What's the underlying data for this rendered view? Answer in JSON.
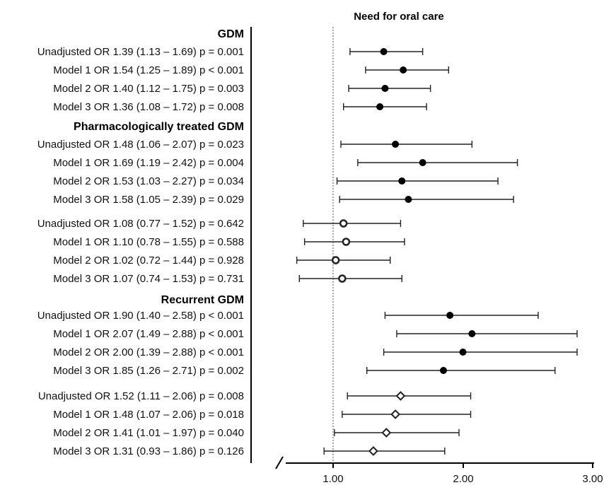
{
  "chart_data": {
    "type": "forest",
    "title": "Need for oral care",
    "x_ticks": [
      "1.00",
      "2.00",
      "3.00"
    ],
    "xlim": [
      0.5,
      3.0
    ],
    "reference_line": 1.0,
    "x_axis_break": true,
    "groups": [
      {
        "heading": "GDM",
        "rows": [
          {
            "label": "Unadjusted OR 1.39 (1.13 – 1.69) p = 0.001",
            "or": 1.39,
            "lo": 1.13,
            "hi": 1.69,
            "marker": "filled-circle"
          },
          {
            "label": "Model 1 OR 1.54 (1.25 – 1.89) p < 0.001",
            "or": 1.54,
            "lo": 1.25,
            "hi": 1.89,
            "marker": "filled-circle"
          },
          {
            "label": "Model 2 OR 1.40 (1.12 – 1.75) p = 0.003",
            "or": 1.4,
            "lo": 1.12,
            "hi": 1.75,
            "marker": "filled-circle"
          },
          {
            "label": "Model 3 OR 1.36 (1.08 – 1.72) p = 0.008",
            "or": 1.36,
            "lo": 1.08,
            "hi": 1.72,
            "marker": "filled-circle"
          }
        ]
      },
      {
        "heading": "Pharmacologically treated GDM",
        "rows": [
          {
            "label": "Unadjusted OR 1.48 (1.06 – 2.07) p = 0.023",
            "or": 1.48,
            "lo": 1.06,
            "hi": 2.07,
            "marker": "filled-circle"
          },
          {
            "label": "Model 1 OR 1.69 (1.19 – 2.42) p = 0.004",
            "or": 1.69,
            "lo": 1.19,
            "hi": 2.42,
            "marker": "filled-circle"
          },
          {
            "label": "Model 2 OR 1.53 (1.03 – 2.27) p = 0.034",
            "or": 1.53,
            "lo": 1.03,
            "hi": 2.27,
            "marker": "filled-circle"
          },
          {
            "label": "Model 3 OR 1.58 (1.05 – 2.39) p = 0.029",
            "or": 1.58,
            "lo": 1.05,
            "hi": 2.39,
            "marker": "filled-circle"
          }
        ]
      },
      {
        "heading": "",
        "rows": [
          {
            "label": "Unadjusted OR 1.08 (0.77 – 1.52) p = 0.642",
            "or": 1.08,
            "lo": 0.77,
            "hi": 1.52,
            "marker": "open-circle"
          },
          {
            "label": "Model 1 OR 1.10 (0.78 – 1.55) p = 0.588",
            "or": 1.1,
            "lo": 0.78,
            "hi": 1.55,
            "marker": "open-circle"
          },
          {
            "label": "Model 2 OR 1.02 (0.72 – 1.44) p = 0.928",
            "or": 1.02,
            "lo": 0.72,
            "hi": 1.44,
            "marker": "open-circle"
          },
          {
            "label": "Model 3 OR 1.07 (0.74 – 1.53) p = 0.731",
            "or": 1.07,
            "lo": 0.74,
            "hi": 1.53,
            "marker": "open-circle"
          }
        ]
      },
      {
        "heading": "Recurrent GDM",
        "rows": [
          {
            "label": "Unadjusted OR 1.90 (1.40 – 2.58) p < 0.001",
            "or": 1.9,
            "lo": 1.4,
            "hi": 2.58,
            "marker": "filled-circle"
          },
          {
            "label": "Model 1 OR 2.07 (1.49 – 2.88) p < 0.001",
            "or": 2.07,
            "lo": 1.49,
            "hi": 2.88,
            "marker": "filled-circle"
          },
          {
            "label": "Model 2 OR 2.00 (1.39 – 2.88) p < 0.001",
            "or": 2.0,
            "lo": 1.39,
            "hi": 2.88,
            "marker": "filled-circle"
          },
          {
            "label": "Model 3 OR 1.85 (1.26 – 2.71) p = 0.002",
            "or": 1.85,
            "lo": 1.26,
            "hi": 2.71,
            "marker": "filled-circle"
          }
        ]
      },
      {
        "heading": "",
        "rows": [
          {
            "label": "Unadjusted OR 1.52 (1.11 – 2.06) p = 0.008",
            "or": 1.52,
            "lo": 1.11,
            "hi": 2.06,
            "marker": "open-diamond"
          },
          {
            "label": "Model 1 OR 1.48 (1.07 – 2.06) p = 0.018",
            "or": 1.48,
            "lo": 1.07,
            "hi": 2.06,
            "marker": "open-diamond"
          },
          {
            "label": "Model 2 OR 1.41 (1.01 – 1.97) p = 0.040",
            "or": 1.41,
            "lo": 1.01,
            "hi": 1.97,
            "marker": "open-diamond"
          },
          {
            "label": "Model 3 OR 1.31 (0.93 – 1.86) p = 0.126",
            "or": 1.31,
            "lo": 0.93,
            "hi": 1.86,
            "marker": "open-diamond"
          }
        ]
      }
    ],
    "colors": {
      "filled": "#000000",
      "open": "#222222",
      "whisker": "#222222",
      "axis": "#000000",
      "reference": "#555555"
    }
  }
}
